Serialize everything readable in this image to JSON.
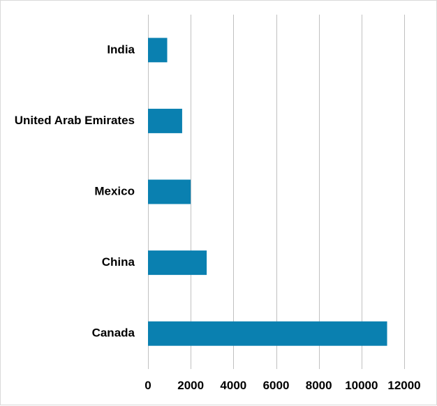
{
  "chart_data": {
    "type": "bar",
    "orientation": "horizontal",
    "categories": [
      "India",
      "United Arab Emirates",
      "Mexico",
      "China",
      "Canada"
    ],
    "values": [
      900,
      1600,
      2000,
      2750,
      11200
    ],
    "xlim": [
      0,
      12000
    ],
    "xticks": [
      0,
      2000,
      4000,
      6000,
      8000,
      10000,
      12000
    ],
    "xtick_labels": [
      "0",
      "2000",
      "4000",
      "6000",
      "8000",
      "10000",
      "12000"
    ],
    "title": "",
    "xlabel": "",
    "ylabel": "",
    "grid": "vertical",
    "legend": "none",
    "colors": {
      "bar": "#0a80b0",
      "grid": "#c0c0c0",
      "border": "#d9d9d9"
    }
  }
}
